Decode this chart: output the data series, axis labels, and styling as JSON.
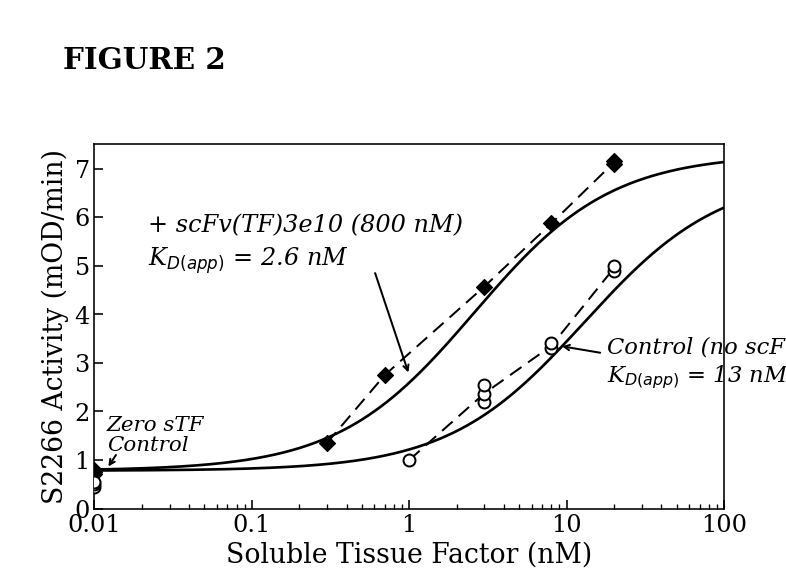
{
  "title": "FIGURE 2",
  "xlabel": "Soluble Tissue Factor (nM)",
  "ylabel": "S2266 Activity (mOD/min)",
  "xlim": [
    0.01,
    100
  ],
  "ylim": [
    0,
    7.5
  ],
  "yticks": [
    0,
    1,
    2,
    3,
    4,
    5,
    6,
    7
  ],
  "background_color": "#ffffff",
  "scfv_data_x": [
    0.01,
    0.01,
    0.01,
    0.3,
    0.7,
    3.0,
    8.0,
    20.0,
    20.0
  ],
  "scfv_data_y": [
    0.75,
    0.8,
    0.72,
    1.35,
    2.75,
    4.57,
    5.87,
    7.1,
    7.15
  ],
  "ctrl_data_x": [
    0.01,
    0.01,
    0.01,
    1.0,
    3.0,
    3.0,
    3.0,
    8.0,
    8.0,
    20.0,
    20.0
  ],
  "ctrl_data_y": [
    0.45,
    0.5,
    0.55,
    1.0,
    2.2,
    2.35,
    2.55,
    3.3,
    3.4,
    4.9,
    5.0
  ],
  "scfv_Kd": 2.6,
  "scfv_Bmax": 7.3,
  "scfv_baseline": 0.78,
  "ctrl_Kd": 13.0,
  "ctrl_Bmax": 6.9,
  "ctrl_baseline": 0.78,
  "annotation_scfv_label": "+ scFv(TF)3e10 (800 nM)",
  "annotation_scfv_kd": "K$_{D(app)}$ = 2.6 nM",
  "annotation_ctrl_label": "Control (no scFv)",
  "annotation_ctrl_kd": "K$_{D(app)}$ = 13 nM",
  "annotation_zero_label1": "Zero sTF",
  "annotation_zero_label2": "Control",
  "line_color": "#000000",
  "title_fontsize": 22,
  "label_fontsize": 20,
  "tick_fontsize": 18,
  "annot_fontsize": 18
}
